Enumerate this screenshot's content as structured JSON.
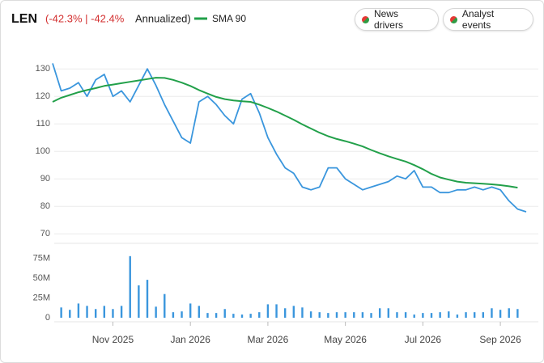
{
  "buttons": [
    "News drivers",
    "Analyst events"
  ],
  "chart_data": [
    {
      "type": "line",
      "title": "LEN",
      "annotations": [
        "(-42.3% | -42.4%",
        "Annualized)"
      ],
      "categories": [
        null,
        null,
        null,
        null,
        null,
        null,
        null,
        "Nov 2025",
        null,
        null,
        null,
        null,
        null,
        null,
        null,
        null,
        "Jan 2026",
        null,
        null,
        null,
        null,
        null,
        null,
        null,
        null,
        "Mar 2026",
        null,
        null,
        null,
        null,
        null,
        null,
        null,
        null,
        "May 2026",
        null,
        null,
        null,
        null,
        null,
        null,
        null,
        null,
        "Jul 2026",
        null,
        null,
        null,
        null,
        null,
        null,
        null,
        null,
        "Sep 2026",
        null,
        null,
        null
      ],
      "series": [
        {
          "color": "#3a96dd",
          "values": [
            132,
            122,
            123,
            125,
            120,
            126,
            128,
            120,
            122,
            118,
            124,
            130,
            124,
            117,
            111,
            105,
            103,
            118,
            120,
            117,
            113,
            110,
            119,
            121,
            114,
            105,
            99,
            94,
            92,
            87,
            86,
            87,
            94,
            94,
            90,
            88,
            86,
            87,
            88,
            89,
            91,
            90,
            93,
            87,
            87,
            85,
            85,
            86,
            86,
            87,
            86,
            87,
            86,
            82,
            79,
            78
          ]
        },
        {
          "name": "SMA 90",
          "color": "#22a04a",
          "values": [
            118,
            119.5,
            120.5,
            121.5,
            122.3,
            123,
            123.8,
            124.3,
            124.8,
            125.3,
            125.8,
            126.3,
            126.8,
            126.7,
            126,
            125,
            123.8,
            122.3,
            121,
            119.8,
            119,
            118.5,
            118.2,
            118,
            117,
            115.8,
            114.5,
            113,
            111.5,
            109.8,
            108.3,
            106.8,
            105.5,
            104.5,
            103.7,
            102.8,
            101.8,
            100.5,
            99.3,
            98.2,
            97.2,
            96.3,
            95,
            93.5,
            91.8,
            90.5,
            89.7,
            89,
            88.6,
            88.4,
            88.2,
            88,
            87.7,
            87.3,
            86.8,
            null
          ]
        }
      ],
      "ylim": [
        68,
        138
      ],
      "yticks": [
        70,
        80,
        90,
        100,
        110,
        120,
        130
      ],
      "grid": true,
      "legend": "top"
    },
    {
      "type": "bar",
      "color": "#3a96dd",
      "values": [
        null,
        13000000,
        10000000,
        18000000,
        15000000,
        11000000,
        15000000,
        11000000,
        15000000,
        78000000,
        41000000,
        48000000,
        14000000,
        30000000,
        7000000,
        8000000,
        18000000,
        15000000,
        6000000,
        6000000,
        11000000,
        5000000,
        4000000,
        5000000,
        7000000,
        17000000,
        17000000,
        12000000,
        15000000,
        13000000,
        8000000,
        7000000,
        6000000,
        7000000,
        7000000,
        7000000,
        7000000,
        6000000,
        12000000,
        12000000,
        7000000,
        7000000,
        4000000,
        6000000,
        6000000,
        7000000,
        8000000,
        4000000,
        7000000,
        7000000,
        7000000,
        12000000,
        10000000,
        12000000,
        11000000,
        null
      ],
      "ylim": [
        0,
        86000000
      ],
      "yticks": [
        0,
        {
          "value": 25000000,
          "label": "25M"
        },
        {
          "value": 50000000,
          "label": "50M"
        },
        {
          "value": 75000000,
          "label": "75M"
        }
      ],
      "grid": false
    }
  ]
}
